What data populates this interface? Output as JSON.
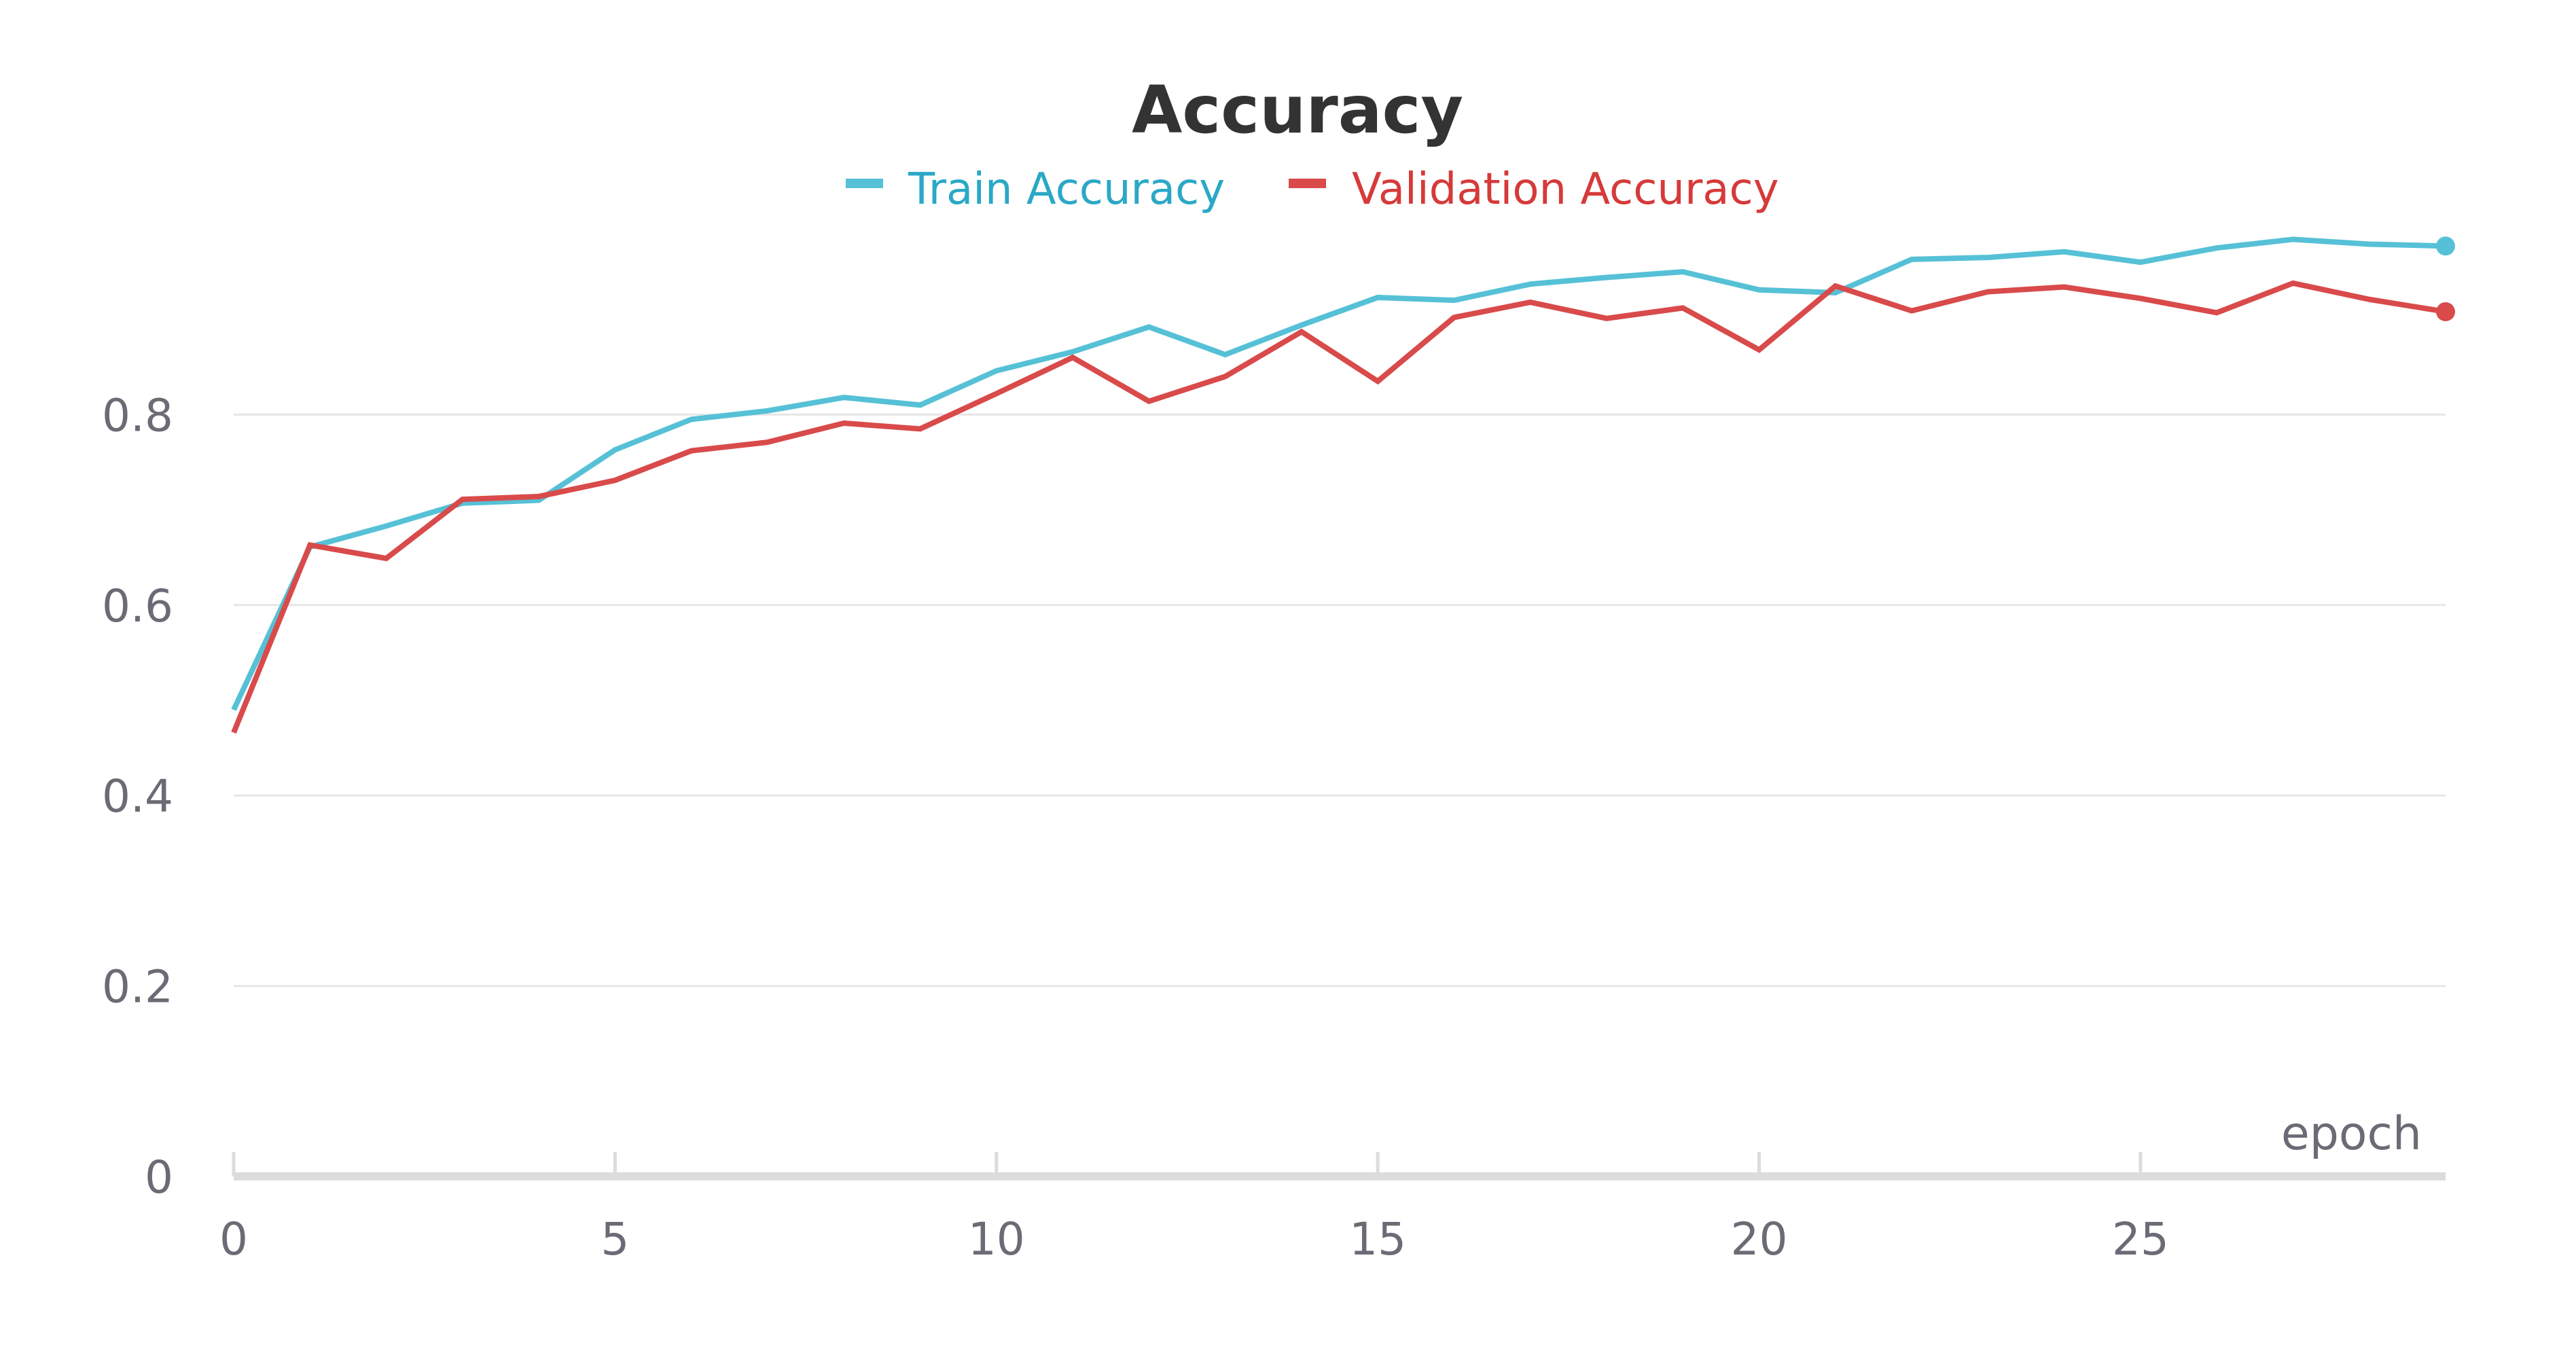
{
  "chart_data": {
    "type": "line",
    "title": "Accuracy",
    "xlabel": "epoch",
    "ylabel": "",
    "xlim": [
      0,
      29
    ],
    "ylim": [
      0,
      1
    ],
    "x_ticks": [
      "0",
      "5",
      "10",
      "15",
      "20",
      "25"
    ],
    "y_ticks": [
      "0",
      "0.2",
      "0.4",
      "0.6",
      "0.8"
    ],
    "grid": "horizontal",
    "legend_position": "top-center",
    "x": [
      0,
      1,
      2,
      3,
      4,
      5,
      6,
      7,
      8,
      9,
      10,
      11,
      12,
      13,
      14,
      15,
      16,
      17,
      18,
      19,
      20,
      21,
      22,
      23,
      24,
      25,
      26,
      27,
      28,
      29
    ],
    "series": [
      {
        "name": "Train Accuracy",
        "color": "#56c1d6",
        "values": [
          0.49,
          0.661,
          0.683,
          0.707,
          0.71,
          0.763,
          0.795,
          0.804,
          0.818,
          0.81,
          0.846,
          0.866,
          0.892,
          0.863,
          0.894,
          0.923,
          0.92,
          0.937,
          0.944,
          0.95,
          0.931,
          0.928,
          0.963,
          0.965,
          0.971,
          0.96,
          0.975,
          0.984,
          0.979,
          0.977
        ]
      },
      {
        "name": "Validation Accuracy",
        "color": "#d94a4a",
        "values": [
          0.466,
          0.663,
          0.649,
          0.711,
          0.714,
          0.731,
          0.762,
          0.771,
          0.791,
          0.785,
          0.822,
          0.86,
          0.814,
          0.84,
          0.887,
          0.835,
          0.902,
          0.918,
          0.901,
          0.912,
          0.868,
          0.935,
          0.909,
          0.929,
          0.934,
          0.922,
          0.907,
          0.938,
          0.921,
          0.908
        ]
      }
    ]
  }
}
